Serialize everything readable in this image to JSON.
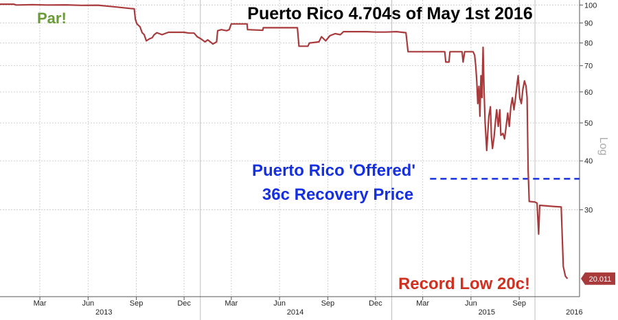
{
  "chart_data": {
    "type": "line",
    "title": "Puerto Rico 4.704s of May 1st 2016",
    "y_scale": "log",
    "ylabel_side": "Log",
    "ylim": [
      18,
      103
    ],
    "y_ticks": [
      30,
      40,
      50,
      60,
      70,
      80,
      90,
      100
    ],
    "y_tick_labels": [
      "30",
      "40",
      "50",
      "60",
      "70",
      "80",
      "90",
      "100"
    ],
    "xlim": [
      "2012-12-15",
      "2015-12-25"
    ],
    "x_ticks": [
      {
        "label": "Mar",
        "date": "2013-03-01"
      },
      {
        "label": "Jun",
        "date": "2013-06-01"
      },
      {
        "label": "Sep",
        "date": "2013-09-01"
      },
      {
        "label": "Dec",
        "date": "2013-12-01"
      },
      {
        "label": "Mar",
        "date": "2014-03-01"
      },
      {
        "label": "Jun",
        "date": "2014-06-01"
      },
      {
        "label": "Sep",
        "date": "2014-09-01"
      },
      {
        "label": "Dec",
        "date": "2014-12-01"
      },
      {
        "label": "Mar",
        "date": "2015-03-01"
      },
      {
        "label": "Jun",
        "date": "2015-06-01"
      },
      {
        "label": "Sep",
        "date": "2015-09-01"
      }
    ],
    "x_year_labels": [
      {
        "label": "2013",
        "date": "2013-07-01"
      },
      {
        "label": "2014",
        "date": "2014-07-01"
      },
      {
        "label": "2015",
        "date": "2015-07-01"
      },
      {
        "label": "2016",
        "date": "2015-12-15"
      }
    ],
    "year_dividers": [
      "2014-01-01",
      "2015-01-01",
      "2015-10-01"
    ],
    "grid": true,
    "series": [
      {
        "color": "#a93a3c",
        "points": [
          [
            "2012-12-15",
            100.5
          ],
          [
            "2013-01-10",
            100.5
          ],
          [
            "2013-01-15",
            100.0
          ],
          [
            "2013-02-15",
            100.2
          ],
          [
            "2013-03-15",
            100.0
          ],
          [
            "2013-04-20",
            100.1
          ],
          [
            "2013-05-20",
            99.8
          ],
          [
            "2013-06-20",
            99.9
          ],
          [
            "2013-07-20",
            99.0
          ],
          [
            "2013-08-20",
            98.0
          ],
          [
            "2013-08-28",
            97.8
          ],
          [
            "2013-08-30",
            92.0
          ],
          [
            "2013-09-02",
            89.5
          ],
          [
            "2013-09-08",
            88.0
          ],
          [
            "2013-09-12",
            85.0
          ],
          [
            "2013-09-16",
            84.0
          ],
          [
            "2013-09-20",
            81.0
          ],
          [
            "2013-09-26",
            82.0
          ],
          [
            "2013-10-01",
            82.5
          ],
          [
            "2013-10-05",
            84.0
          ],
          [
            "2013-10-10",
            85.0
          ],
          [
            "2013-10-20",
            84.0
          ],
          [
            "2013-11-01",
            85.2
          ],
          [
            "2013-12-01",
            85.2
          ],
          [
            "2013-12-10",
            84.8
          ],
          [
            "2013-12-20",
            84.8
          ],
          [
            "2013-12-26",
            83.0
          ],
          [
            "2014-01-02",
            82.0
          ],
          [
            "2014-01-10",
            80.5
          ],
          [
            "2014-01-15",
            81.5
          ],
          [
            "2014-01-20",
            80.5
          ],
          [
            "2014-01-25",
            79.5
          ],
          [
            "2014-02-01",
            80.5
          ],
          [
            "2014-02-03",
            86.0
          ],
          [
            "2014-02-10",
            86.5
          ],
          [
            "2014-02-20",
            86.0
          ],
          [
            "2014-02-25",
            86.5
          ],
          [
            "2014-03-01",
            89.5
          ],
          [
            "2014-03-15",
            89.5
          ],
          [
            "2014-03-31",
            89.5
          ],
          [
            "2014-04-01",
            86.5
          ],
          [
            "2014-04-30",
            86.2
          ],
          [
            "2014-05-01",
            87.5
          ],
          [
            "2014-06-15",
            87.5
          ],
          [
            "2014-07-05",
            87.5
          ],
          [
            "2014-07-08",
            78.5
          ],
          [
            "2014-07-25",
            78.5
          ],
          [
            "2014-07-28",
            80.0
          ],
          [
            "2014-08-15",
            80.5
          ],
          [
            "2014-08-20",
            83.0
          ],
          [
            "2014-08-28",
            81.0
          ],
          [
            "2014-09-05",
            83.5
          ],
          [
            "2014-09-15",
            84.5
          ],
          [
            "2014-09-25",
            84.0
          ],
          [
            "2014-10-01",
            85.5
          ],
          [
            "2014-11-15",
            85.5
          ],
          [
            "2014-12-01",
            85.3
          ],
          [
            "2014-12-20",
            85.3
          ],
          [
            "2015-01-10",
            85.5
          ],
          [
            "2015-01-28",
            85.0
          ],
          [
            "2015-02-01",
            76.0
          ],
          [
            "2015-03-15",
            76.0
          ],
          [
            "2015-04-12",
            76.0
          ],
          [
            "2015-04-14",
            71.5
          ],
          [
            "2015-04-20",
            71.5
          ],
          [
            "2015-04-22",
            76.0
          ],
          [
            "2015-05-15",
            76.0
          ],
          [
            "2015-05-17",
            71.5
          ],
          [
            "2015-05-20",
            76.0
          ],
          [
            "2015-05-25",
            76.0
          ],
          [
            "2015-06-05",
            76.0
          ],
          [
            "2015-06-08",
            74.5
          ],
          [
            "2015-06-10",
            70.0
          ],
          [
            "2015-06-12",
            64.0
          ],
          [
            "2015-06-14",
            56.0
          ],
          [
            "2015-06-16",
            62.0
          ],
          [
            "2015-06-18",
            52.0
          ],
          [
            "2015-06-20",
            66.0
          ],
          [
            "2015-06-22",
            58.0
          ],
          [
            "2015-06-24",
            78.0
          ],
          [
            "2015-06-26",
            60.0
          ],
          [
            "2015-06-28",
            50.0
          ],
          [
            "2015-07-01",
            42.5
          ],
          [
            "2015-07-03",
            47.0
          ],
          [
            "2015-07-05",
            52.0
          ],
          [
            "2015-07-08",
            55.0
          ],
          [
            "2015-07-10",
            46.0
          ],
          [
            "2015-07-12",
            43.0
          ],
          [
            "2015-07-15",
            46.0
          ],
          [
            "2015-07-18",
            51.0
          ],
          [
            "2015-07-20",
            54.0
          ],
          [
            "2015-07-23",
            49.0
          ],
          [
            "2015-07-26",
            54.0
          ],
          [
            "2015-07-28",
            46.5
          ],
          [
            "2015-08-01",
            47.0
          ],
          [
            "2015-08-04",
            45.5
          ],
          [
            "2015-08-07",
            49.0
          ],
          [
            "2015-08-10",
            53.0
          ],
          [
            "2015-08-13",
            49.0
          ],
          [
            "2015-08-16",
            55.0
          ],
          [
            "2015-08-19",
            58.0
          ],
          [
            "2015-08-22",
            54.0
          ],
          [
            "2015-08-25",
            58.0
          ],
          [
            "2015-08-28",
            63.0
          ],
          [
            "2015-08-30",
            66.0
          ],
          [
            "2015-09-02",
            58.0
          ],
          [
            "2015-09-05",
            56.0
          ],
          [
            "2015-09-08",
            61.0
          ],
          [
            "2015-09-11",
            64.0
          ],
          [
            "2015-09-14",
            62.0
          ],
          [
            "2015-09-16",
            58.0
          ],
          [
            "2015-09-18",
            38.0
          ],
          [
            "2015-09-20",
            31.5
          ],
          [
            "2015-10-01",
            31.4
          ],
          [
            "2015-10-05",
            31.2
          ],
          [
            "2015-10-08",
            26.0
          ],
          [
            "2015-10-10",
            30.8
          ],
          [
            "2015-11-05",
            30.6
          ],
          [
            "2015-11-20",
            30.5
          ],
          [
            "2015-11-24",
            21.5
          ],
          [
            "2015-11-28",
            20.3
          ],
          [
            "2015-12-02",
            20.011
          ]
        ]
      }
    ],
    "last_value_label": "20.011",
    "reference_line": {
      "value": 36,
      "from": "2015-03-15",
      "to": "2015-12-25",
      "style": "dashed",
      "color": "#1530e0"
    },
    "annotations": [
      {
        "text": "Par!",
        "color": "#6a9a3a"
      },
      {
        "text": "Puerto Rico 'Offered'",
        "color": "#1530e0"
      },
      {
        "text": "36c Recovery Price",
        "color": "#1530e0"
      },
      {
        "text": "Record Low 20c!",
        "color": "#d03020"
      }
    ]
  }
}
